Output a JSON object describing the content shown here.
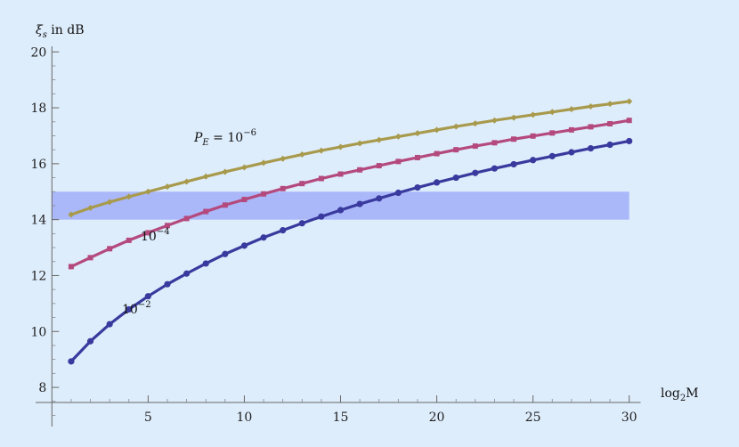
{
  "chart_data": {
    "type": "line",
    "xlabel": {
      "base": "log",
      "sub": "2",
      "rest": "M"
    },
    "ylabel": {
      "sym": "ξ",
      "sub": "s",
      "rest": " in dB"
    },
    "xlim": [
      -0.5,
      30.5
    ],
    "ylim": [
      6.6,
      20.2
    ],
    "x_ticks": [
      5,
      10,
      15,
      20,
      25,
      30
    ],
    "y_ticks": [
      8,
      10,
      12,
      14,
      16,
      18,
      20
    ],
    "band": {
      "ymin": 14,
      "ymax": 15,
      "xmin": 0,
      "xmax": 30,
      "color": "#aab8fa"
    },
    "labels": [
      {
        "id": "pe6",
        "prefix": "P",
        "prefix_sub": "E",
        "eq": " = 10",
        "sup": "−6"
      },
      {
        "id": "pe4",
        "prefix": "",
        "prefix_sub": "",
        "eq": "10",
        "sup": "−4"
      },
      {
        "id": "pe2",
        "prefix": "",
        "prefix_sub": "",
        "eq": "10",
        "sup": "−2"
      }
    ],
    "series": [
      {
        "label_ref": "pe6",
        "color": "#a89a4c",
        "marker": "diamond",
        "x": [
          1,
          2,
          3,
          4,
          5,
          6,
          7,
          8,
          9,
          10,
          11,
          12,
          13,
          14,
          15,
          16,
          17,
          18,
          19,
          20,
          21,
          22,
          23,
          24,
          25,
          26,
          27,
          28,
          29,
          30
        ],
        "values": [
          14.18,
          14.42,
          14.63,
          14.82,
          15.0,
          15.18,
          15.36,
          15.54,
          15.71,
          15.87,
          16.03,
          16.18,
          16.33,
          16.47,
          16.6,
          16.73,
          16.85,
          16.97,
          17.09,
          17.21,
          17.33,
          17.44,
          17.55,
          17.65,
          17.75,
          17.85,
          17.95,
          18.05,
          18.14,
          18.23
        ]
      },
      {
        "label_ref": "pe4",
        "color": "#b4497d",
        "marker": "square",
        "x": [
          1,
          2,
          3,
          4,
          5,
          6,
          7,
          8,
          9,
          10,
          11,
          12,
          13,
          14,
          15,
          16,
          17,
          18,
          19,
          20,
          21,
          22,
          23,
          24,
          25,
          26,
          27,
          28,
          29,
          30
        ],
        "values": [
          12.32,
          12.64,
          12.96,
          13.26,
          13.53,
          13.79,
          14.04,
          14.29,
          14.52,
          14.72,
          14.92,
          15.11,
          15.29,
          15.47,
          15.63,
          15.78,
          15.93,
          16.08,
          16.22,
          16.36,
          16.5,
          16.63,
          16.75,
          16.88,
          16.99,
          17.1,
          17.21,
          17.32,
          17.43,
          17.55
        ]
      },
      {
        "label_ref": "pe2",
        "color": "#3a3a9e",
        "marker": "circle",
        "x": [
          1,
          2,
          3,
          4,
          5,
          6,
          7,
          8,
          9,
          10,
          11,
          12,
          13,
          14,
          15,
          16,
          17,
          18,
          19,
          20,
          21,
          22,
          23,
          24,
          25,
          26,
          27,
          28,
          29,
          30
        ],
        "values": [
          8.93,
          9.65,
          10.26,
          10.79,
          11.26,
          11.69,
          12.07,
          12.43,
          12.77,
          13.07,
          13.36,
          13.62,
          13.87,
          14.11,
          14.34,
          14.56,
          14.76,
          14.96,
          15.15,
          15.33,
          15.5,
          15.67,
          15.83,
          15.98,
          16.13,
          16.27,
          16.41,
          16.55,
          16.68,
          16.81
        ]
      }
    ]
  }
}
